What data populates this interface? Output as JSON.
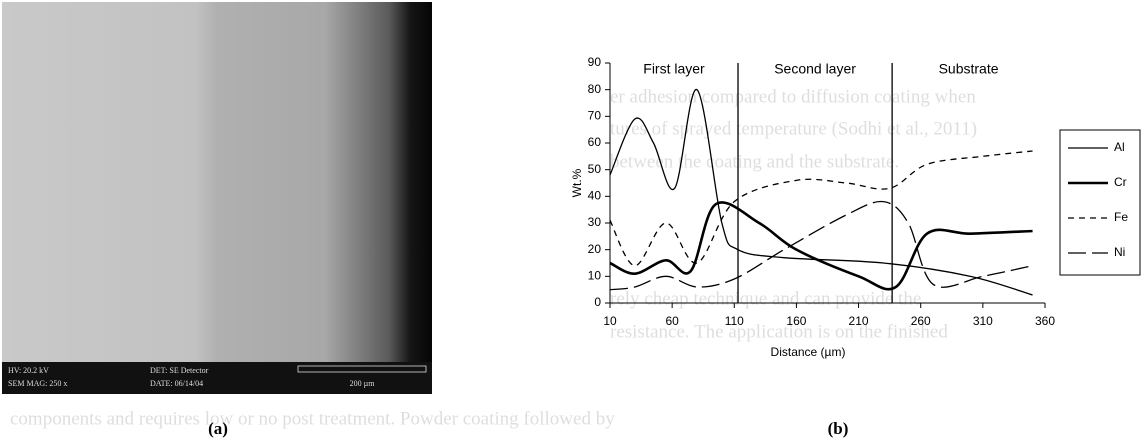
{
  "background_text": [
    "er adhesion compared to diffusion coating when",
    "tures of sprayed temperature (Sodhi et al., 2011)",
    "between the coating and the substrate.",
    "rely cheap technique and can provide the",
    "resistance. The application is on the finished",
    "components and requires low or no post treatment. Powder coating followed by"
  ],
  "sem_image": {
    "hv": "HV: 20.2 kV",
    "det": "DET: SE Detector",
    "mag": "SEM MAG: 250 x",
    "date": "DATE: 06/14/04",
    "scale": "200 µm"
  },
  "captions": [
    "(a)",
    "(b)"
  ],
  "chart_data": {
    "type": "line",
    "xlabel": "Distance (µm)",
    "ylabel": "Wt.%",
    "xlim": [
      10,
      360
    ],
    "xticks": [
      10,
      60,
      110,
      160,
      210,
      260,
      310,
      360
    ],
    "ylim": [
      0,
      90
    ],
    "yticks": [
      0,
      10,
      20,
      30,
      40,
      50,
      60,
      70,
      80,
      90
    ],
    "regions": [
      "First layer",
      "Second layer",
      "Substrate"
    ],
    "boundaries": [
      113,
      237
    ],
    "legend": "right",
    "series": [
      {
        "name": "Al",
        "color": "#000",
        "width": 1.3,
        "dash": "none",
        "x": [
          10,
          30,
          45,
          62,
          80,
          100,
          113,
          150,
          230,
          300,
          350
        ],
        "values": [
          48,
          69,
          60,
          43,
          80,
          30,
          20,
          17,
          15,
          10,
          3
        ]
      },
      {
        "name": "Cr",
        "color": "#000",
        "width": 2.6,
        "dash": "none",
        "x": [
          10,
          30,
          55,
          75,
          95,
          130,
          160,
          210,
          240,
          265,
          300,
          350
        ],
        "values": [
          15,
          11,
          16,
          12,
          37,
          30,
          20,
          10,
          6,
          26,
          26,
          27
        ]
      },
      {
        "name": "Fe",
        "color": "#000",
        "width": 1.3,
        "dash": "6,5",
        "x": [
          10,
          30,
          55,
          80,
          110,
          160,
          200,
          235,
          265,
          310,
          350
        ],
        "values": [
          31,
          14,
          30,
          15,
          38,
          46,
          45,
          43,
          52,
          55,
          57
        ]
      },
      {
        "name": "Ni",
        "color": "#000",
        "width": 1.3,
        "dash": "18,6",
        "x": [
          10,
          30,
          55,
          80,
          110,
          150,
          200,
          230,
          250,
          270,
          310,
          350
        ],
        "values": [
          5,
          6,
          10,
          6,
          9,
          20,
          33,
          38,
          30,
          7,
          10,
          14
        ]
      }
    ]
  }
}
